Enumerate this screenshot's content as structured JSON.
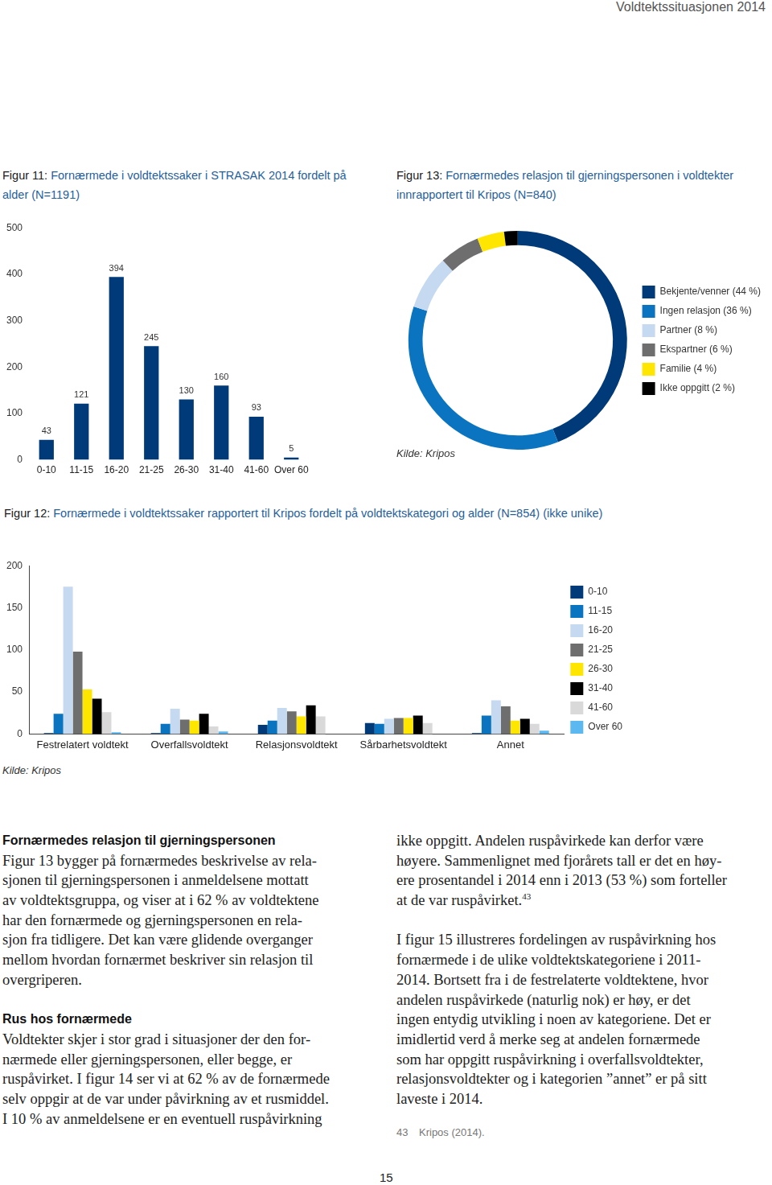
{
  "header": {
    "running_title": "Voldtektssituasjonen 2014"
  },
  "chart_data": [
    {
      "type": "bar",
      "title": "Figur 11: Fornærmede i voldtektssaker i STRASAK 2014 fordelt på alder (N=1191)",
      "categories": [
        "0-10",
        "11-15",
        "16-20",
        "21-25",
        "26-30",
        "31-40",
        "41-60",
        "Over 60"
      ],
      "values": [
        43,
        121,
        394,
        245,
        130,
        160,
        93,
        5
      ],
      "color": "#003a78",
      "ylim": [
        0,
        500
      ],
      "yticks": [
        0,
        100,
        200,
        300,
        400,
        500
      ],
      "grid": false,
      "data_labels": true
    },
    {
      "type": "doughnut",
      "title": "Figur 13: Fornærmedes relasjon til gjerningspersonen i voldtekter innrapportert til Kripos (N=840)",
      "categories": [
        "Bekjente/venner (44 %)",
        "Ingen relasjon (36 %)",
        "Partner (8 %)",
        "Ekspartner (6 %)",
        "Familie (4 %)",
        "Ikke oppgitt (2 %)"
      ],
      "values": [
        44,
        36,
        8,
        6,
        4,
        2
      ],
      "colors": [
        "#003a78",
        "#0a74c0",
        "#c5d9f0",
        "#6e6e6e",
        "#ffe600",
        "#000000"
      ],
      "legend": "right",
      "source": "Kilde: Kripos"
    },
    {
      "type": "bar",
      "title": "Figur 12: Fornærmede i voldtektssaker rapportert til Kripos fordelt på voldtektskategori og alder (N=854) (ikke unike)",
      "categories": [
        "Festrelatert voldtekt",
        "Overfallsvoldtekt",
        "Relasjonsvoldtekt",
        "Sårbarhetsvoldtekt",
        "Annet"
      ],
      "series": [
        {
          "name": "0-10",
          "color": "#003a78",
          "values": [
            1,
            1,
            11,
            13,
            1
          ]
        },
        {
          "name": "11-15",
          "color": "#0a74c0",
          "values": [
            24,
            12,
            16,
            12,
            22
          ]
        },
        {
          "name": "16-20",
          "color": "#c5d9f0",
          "values": [
            175,
            30,
            31,
            18,
            40
          ]
        },
        {
          "name": "21-25",
          "color": "#6e6e6e",
          "values": [
            98,
            17,
            27,
            19,
            33
          ]
        },
        {
          "name": "26-30",
          "color": "#ffe600",
          "values": [
            53,
            16,
            21,
            19,
            16
          ]
        },
        {
          "name": "31-40",
          "color": "#000000",
          "values": [
            42,
            24,
            34,
            22,
            18
          ]
        },
        {
          "name": "41-60",
          "color": "#d9d9d9",
          "values": [
            26,
            9,
            21,
            13,
            12
          ]
        },
        {
          "name": "Over 60",
          "color": "#5bb8f0",
          "values": [
            2,
            3,
            0,
            0,
            4
          ]
        }
      ],
      "ylim": [
        0,
        200
      ],
      "yticks": [
        0,
        50,
        100,
        150,
        200
      ],
      "grid": false,
      "legend": "right",
      "source": "Kilde: Kripos"
    }
  ],
  "body": {
    "left_column": [
      {
        "type": "heading",
        "text": "Fornærmedes relasjon til gjerningspersonen"
      },
      {
        "type": "paragraph",
        "lines": [
          {
            "text": "Figur 13 bygger på fornærmedes beskrivelse av rela-"
          },
          {
            "text": "sjonen til gjerningspersonen i anmeldelsene mottatt"
          },
          {
            "text": "av voldtektsgruppa, og viser at i 62 % av voldtektene"
          },
          {
            "text": "har den fornærmede og gjerningspersonen en rela-"
          },
          {
            "text": "sjon fra tidligere. Det kan være glidende overganger"
          },
          {
            "text": "mellom hvordan fornærmet beskriver sin relasjon til"
          },
          {
            "text": "overgriperen."
          }
        ]
      },
      {
        "type": "heading",
        "text": "Rus hos fornærmede"
      },
      {
        "type": "paragraph",
        "lines": [
          {
            "text": "Voldtekter skjer i stor grad i situasjoner der den for-"
          },
          {
            "text": "nærmede eller gjerningspersonen, eller begge, er"
          },
          {
            "text": "ruspåvirket. I figur 14 ser vi at 62 % av de fornærmede"
          },
          {
            "text": "selv oppgir at de var under påvirkning av et rusmiddel."
          },
          {
            "text": "I 10 % av anmeldelsene er en eventuell ruspåvirkning"
          }
        ]
      }
    ],
    "right_column": [
      {
        "type": "paragraph",
        "lines": [
          {
            "text": "ikke oppgitt. Andelen ruspåvirkede kan derfor være"
          },
          {
            "text": "høyere. Sammenlignet med fjorårets tall er det en høy-"
          },
          {
            "text": "ere prosentandel i 2014 enn i 2013 (53 %) som forteller"
          },
          {
            "text": "at de var ruspåvirket.",
            "sup": "43"
          }
        ]
      },
      {
        "type": "paragraph",
        "lines": [
          {
            "text": "I figur 15 illustreres fordelingen av ruspåvirkning hos"
          },
          {
            "text": "fornærmede i de ulike voldtektskategoriene i 2011-"
          },
          {
            "text": "2014. Bortsett fra i de festrelaterte voldtektene, hvor"
          },
          {
            "text": "andelen ruspåvirkede (naturlig nok) er høy, er det"
          },
          {
            "text": "ingen entydig utvikling i noen av kategoriene. Det er"
          },
          {
            "text": "imidlertid verd å merke seg at andelen fornærmede"
          },
          {
            "text": "som har oppgitt ruspåvirkning i overfallsvoldtekter,"
          },
          {
            "text": "relasjonsvoldtekter og i kategorien ”annet” er på sitt"
          },
          {
            "text": "laveste i 2014."
          }
        ]
      }
    ]
  },
  "footnotes": [
    {
      "number": "43",
      "text": "Kripos (2014)."
    }
  ],
  "page_number": "15"
}
